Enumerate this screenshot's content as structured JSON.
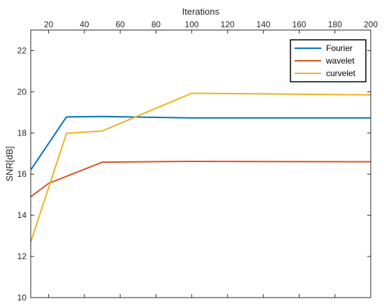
{
  "chart_data": {
    "type": "line",
    "xlabel": "Iterations",
    "ylabel": "SNR[dB]",
    "x_axis_position": "top",
    "xlim": [
      10,
      200
    ],
    "ylim": [
      10,
      23
    ],
    "xticks": [
      20,
      40,
      60,
      80,
      100,
      120,
      140,
      160,
      180,
      200
    ],
    "yticks": [
      10,
      12,
      14,
      16,
      18,
      20,
      22
    ],
    "grid": false,
    "legend_position": "top-right",
    "series": [
      {
        "name": "Fourier",
        "color": "#0072BD",
        "x": [
          10,
          30,
          50,
          100,
          200
        ],
        "y": [
          16.2,
          18.78,
          18.8,
          18.73,
          18.73
        ]
      },
      {
        "name": "wavelet",
        "color": "#D95319",
        "x": [
          10,
          20,
          50,
          100,
          200
        ],
        "y": [
          14.9,
          15.55,
          16.58,
          16.62,
          16.6
        ]
      },
      {
        "name": "curvelet",
        "color": "#EDB120",
        "x": [
          10,
          30,
          50,
          100,
          200
        ],
        "y": [
          12.7,
          17.98,
          18.1,
          19.93,
          19.85
        ]
      }
    ]
  }
}
